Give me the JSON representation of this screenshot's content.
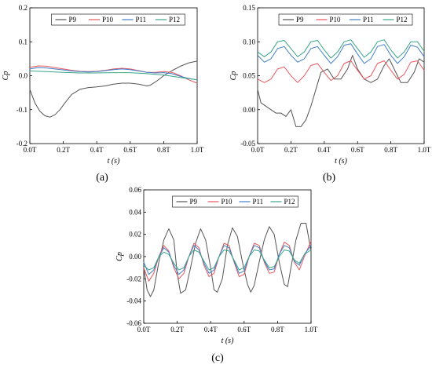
{
  "figure": {
    "panel_labels": [
      "(a)",
      "(b)",
      "(c)"
    ]
  },
  "colors": {
    "P9": "#555555",
    "P10": "#e8585e",
    "P11": "#3f7fc8",
    "P12": "#3aa58a"
  },
  "chart_data": [
    {
      "id": "a",
      "type": "line",
      "panel_label": "(a)",
      "xlabel": "t (s)",
      "ylabel": "Cp",
      "xlim": [
        0,
        1
      ],
      "ylim": [
        -0.2,
        0.2
      ],
      "xticks": [
        "0.0T",
        "0.2T",
        "0.4T",
        "0.6T",
        "0.8T",
        "1.0T"
      ],
      "yticks": [
        "-0.2",
        "-0.1",
        "0.0",
        "0.1",
        "0.2"
      ],
      "ytick_values": [
        -0.2,
        -0.1,
        0.0,
        0.1,
        0.2
      ],
      "legend": [
        "P9",
        "P10",
        "P11",
        "P12"
      ],
      "legend_placement": "top",
      "series": [
        {
          "name": "P9",
          "x": [
            0,
            0.03,
            0.06,
            0.09,
            0.12,
            0.15,
            0.18,
            0.21,
            0.25,
            0.3,
            0.35,
            0.4,
            0.45,
            0.5,
            0.55,
            0.6,
            0.65,
            0.7,
            0.72,
            0.76,
            0.8,
            0.85,
            0.9,
            0.95,
            1.0
          ],
          "y": [
            -0.04,
            -0.08,
            -0.105,
            -0.118,
            -0.122,
            -0.115,
            -0.1,
            -0.08,
            -0.055,
            -0.04,
            -0.035,
            -0.033,
            -0.03,
            -0.025,
            -0.022,
            -0.022,
            -0.025,
            -0.03,
            -0.028,
            -0.015,
            0.0,
            0.015,
            0.028,
            0.038,
            0.043
          ]
        },
        {
          "name": "P10",
          "x": [
            0,
            0.05,
            0.1,
            0.15,
            0.2,
            0.25,
            0.3,
            0.35,
            0.4,
            0.45,
            0.5,
            0.55,
            0.6,
            0.65,
            0.7,
            0.75,
            0.8,
            0.85,
            0.9,
            0.95,
            1.0
          ],
          "y": [
            0.025,
            0.029,
            0.028,
            0.024,
            0.02,
            0.016,
            0.013,
            0.012,
            0.013,
            0.016,
            0.02,
            0.022,
            0.02,
            0.015,
            0.01,
            0.01,
            0.012,
            0.01,
            0.0,
            -0.012,
            -0.022
          ]
        },
        {
          "name": "P11",
          "x": [
            0,
            0.05,
            0.1,
            0.15,
            0.2,
            0.25,
            0.3,
            0.35,
            0.4,
            0.45,
            0.5,
            0.55,
            0.6,
            0.65,
            0.7,
            0.75,
            0.8,
            0.85,
            0.9,
            0.95,
            1.0
          ],
          "y": [
            0.02,
            0.024,
            0.023,
            0.02,
            0.017,
            0.014,
            0.012,
            0.011,
            0.012,
            0.015,
            0.018,
            0.02,
            0.018,
            0.014,
            0.01,
            0.008,
            0.009,
            0.006,
            -0.002,
            -0.008,
            -0.012
          ]
        },
        {
          "name": "P12",
          "x": [
            0,
            0.1,
            0.2,
            0.3,
            0.4,
            0.5,
            0.6,
            0.7,
            0.8,
            0.9,
            1.0
          ],
          "y": [
            0.014,
            0.012,
            0.01,
            0.008,
            0.008,
            0.009,
            0.009,
            0.006,
            0.002,
            -0.005,
            -0.012
          ]
        }
      ]
    },
    {
      "id": "b",
      "type": "line",
      "panel_label": "(b)",
      "xlabel": "t (s)",
      "ylabel": "Cp",
      "xlim": [
        0,
        1
      ],
      "ylim": [
        -0.05,
        0.15
      ],
      "xticks": [
        "0.0T",
        "0.2T",
        "0.4T",
        "0.6T",
        "0.8T",
        "1.0T"
      ],
      "yticks": [
        "-0.05",
        "0.00",
        "0.05",
        "0.10",
        "0.15"
      ],
      "ytick_values": [
        -0.05,
        0.0,
        0.05,
        0.1,
        0.15
      ],
      "legend": [
        "P9",
        "P10",
        "P11",
        "P12"
      ],
      "legend_placement": "top",
      "series": [
        {
          "name": "P9",
          "x": [
            0,
            0.02,
            0.05,
            0.08,
            0.11,
            0.14,
            0.17,
            0.2,
            0.23,
            0.26,
            0.29,
            0.32,
            0.35,
            0.38,
            0.42,
            0.46,
            0.5,
            0.54,
            0.57,
            0.6,
            0.64,
            0.68,
            0.72,
            0.76,
            0.79,
            0.82,
            0.86,
            0.9,
            0.94,
            0.97,
            1.0
          ],
          "y": [
            0.03,
            0.01,
            0.005,
            0.0,
            -0.005,
            -0.005,
            -0.01,
            0.0,
            -0.025,
            -0.025,
            -0.015,
            0.005,
            0.03,
            0.055,
            0.06,
            0.045,
            0.045,
            0.06,
            0.08,
            0.06,
            0.045,
            0.04,
            0.045,
            0.065,
            0.075,
            0.06,
            0.04,
            0.04,
            0.055,
            0.075,
            0.07
          ]
        },
        {
          "name": "P10",
          "x": [
            0,
            0.04,
            0.08,
            0.12,
            0.16,
            0.2,
            0.24,
            0.28,
            0.32,
            0.36,
            0.4,
            0.44,
            0.48,
            0.52,
            0.56,
            0.6,
            0.64,
            0.68,
            0.72,
            0.76,
            0.8,
            0.84,
            0.88,
            0.92,
            0.96,
            1.0
          ],
          "y": [
            0.045,
            0.04,
            0.045,
            0.06,
            0.063,
            0.05,
            0.04,
            0.05,
            0.065,
            0.068,
            0.055,
            0.043,
            0.05,
            0.068,
            0.072,
            0.058,
            0.045,
            0.05,
            0.068,
            0.072,
            0.058,
            0.045,
            0.052,
            0.07,
            0.072,
            0.058
          ]
        },
        {
          "name": "P11",
          "x": [
            0,
            0.04,
            0.08,
            0.12,
            0.16,
            0.2,
            0.24,
            0.28,
            0.32,
            0.36,
            0.4,
            0.44,
            0.48,
            0.52,
            0.56,
            0.6,
            0.64,
            0.68,
            0.72,
            0.76,
            0.8,
            0.84,
            0.88,
            0.92,
            0.96,
            1.0
          ],
          "y": [
            0.08,
            0.07,
            0.075,
            0.09,
            0.093,
            0.08,
            0.07,
            0.075,
            0.09,
            0.093,
            0.08,
            0.068,
            0.078,
            0.095,
            0.097,
            0.082,
            0.068,
            0.075,
            0.093,
            0.096,
            0.08,
            0.068,
            0.078,
            0.095,
            0.092,
            0.078
          ]
        },
        {
          "name": "P12",
          "x": [
            0,
            0.04,
            0.08,
            0.12,
            0.16,
            0.2,
            0.24,
            0.28,
            0.32,
            0.36,
            0.4,
            0.44,
            0.48,
            0.52,
            0.56,
            0.6,
            0.64,
            0.68,
            0.72,
            0.76,
            0.8,
            0.84,
            0.88,
            0.92,
            0.96,
            1.0
          ],
          "y": [
            0.085,
            0.078,
            0.085,
            0.1,
            0.102,
            0.09,
            0.078,
            0.085,
            0.1,
            0.102,
            0.088,
            0.076,
            0.085,
            0.1,
            0.103,
            0.09,
            0.077,
            0.085,
            0.1,
            0.103,
            0.088,
            0.076,
            0.085,
            0.1,
            0.1,
            0.086
          ]
        }
      ]
    },
    {
      "id": "c",
      "type": "line",
      "panel_label": "(c)",
      "xlabel": "t (s)",
      "ylabel": "Cp",
      "xlim": [
        0,
        1
      ],
      "ylim": [
        -0.06,
        0.06
      ],
      "xticks": [
        "0.0T",
        "0.2T",
        "0.4T",
        "0.6T",
        "0.8T",
        "1.0T"
      ],
      "yticks": [
        "-0.06",
        "-0.04",
        "-0.02",
        "0.00",
        "0.02",
        "0.04",
        "0.06"
      ],
      "ytick_values": [
        -0.06,
        -0.04,
        -0.02,
        0.0,
        0.02,
        0.04,
        0.06
      ],
      "legend": [
        "P9",
        "P10",
        "P11",
        "P12"
      ],
      "legend_placement": "top",
      "series": [
        {
          "name": "P9",
          "x": [
            0,
            0.02,
            0.04,
            0.06,
            0.09,
            0.12,
            0.15,
            0.18,
            0.2,
            0.22,
            0.25,
            0.28,
            0.31,
            0.34,
            0.37,
            0.4,
            0.42,
            0.44,
            0.47,
            0.5,
            0.53,
            0.56,
            0.59,
            0.62,
            0.64,
            0.66,
            0.69,
            0.72,
            0.75,
            0.78,
            0.81,
            0.84,
            0.86,
            0.88,
            0.91,
            0.94,
            0.97,
            1.0
          ],
          "y": [
            -0.01,
            -0.03,
            -0.036,
            -0.03,
            -0.005,
            0.015,
            0.025,
            0.015,
            -0.015,
            -0.033,
            -0.03,
            -0.01,
            0.012,
            0.025,
            0.015,
            -0.01,
            -0.03,
            -0.032,
            -0.02,
            0.01,
            0.026,
            0.018,
            -0.005,
            -0.025,
            -0.032,
            -0.026,
            -0.005,
            0.015,
            0.027,
            0.02,
            -0.005,
            -0.025,
            -0.027,
            -0.01,
            0.015,
            0.03,
            0.03,
            0.005
          ]
        },
        {
          "name": "P10",
          "x": [
            0,
            0.03,
            0.06,
            0.09,
            0.12,
            0.15,
            0.18,
            0.21,
            0.24,
            0.27,
            0.3,
            0.33,
            0.36,
            0.39,
            0.42,
            0.45,
            0.48,
            0.51,
            0.54,
            0.57,
            0.6,
            0.63,
            0.66,
            0.69,
            0.72,
            0.75,
            0.78,
            0.81,
            0.84,
            0.87,
            0.9,
            0.93,
            0.96,
            1.0
          ],
          "y": [
            -0.01,
            -0.022,
            -0.015,
            0.0,
            0.01,
            0.005,
            -0.01,
            -0.02,
            -0.015,
            0.0,
            0.012,
            0.008,
            -0.008,
            -0.018,
            -0.015,
            0.0,
            0.012,
            0.01,
            -0.005,
            -0.018,
            -0.016,
            0.0,
            0.012,
            0.01,
            -0.005,
            -0.015,
            -0.014,
            0.002,
            0.013,
            0.01,
            -0.005,
            -0.012,
            0.0,
            0.014
          ]
        },
        {
          "name": "P11",
          "x": [
            0,
            0.03,
            0.06,
            0.09,
            0.12,
            0.15,
            0.18,
            0.21,
            0.24,
            0.27,
            0.3,
            0.33,
            0.36,
            0.39,
            0.42,
            0.45,
            0.48,
            0.51,
            0.54,
            0.57,
            0.6,
            0.63,
            0.66,
            0.69,
            0.72,
            0.75,
            0.78,
            0.81,
            0.84,
            0.87,
            0.9,
            0.93,
            0.96,
            1.0
          ],
          "y": [
            -0.005,
            -0.016,
            -0.012,
            0.0,
            0.008,
            0.004,
            -0.008,
            -0.016,
            -0.012,
            0.0,
            0.01,
            0.006,
            -0.006,
            -0.015,
            -0.012,
            0.0,
            0.01,
            0.008,
            -0.004,
            -0.015,
            -0.013,
            0.0,
            0.01,
            0.008,
            -0.004,
            -0.012,
            -0.011,
            0.002,
            0.01,
            0.008,
            -0.004,
            -0.008,
            0.002,
            0.01
          ]
        },
        {
          "name": "P12",
          "x": [
            0,
            0.03,
            0.06,
            0.09,
            0.12,
            0.15,
            0.18,
            0.21,
            0.24,
            0.27,
            0.3,
            0.33,
            0.36,
            0.39,
            0.42,
            0.45,
            0.48,
            0.51,
            0.54,
            0.57,
            0.6,
            0.63,
            0.66,
            0.69,
            0.72,
            0.75,
            0.78,
            0.81,
            0.84,
            0.87,
            0.9,
            0.93,
            0.96,
            1.0
          ],
          "y": [
            -0.008,
            -0.012,
            -0.01,
            0.0,
            0.004,
            0.002,
            -0.006,
            -0.012,
            -0.01,
            0.0,
            0.006,
            0.004,
            -0.004,
            -0.012,
            -0.01,
            0.0,
            0.006,
            0.005,
            -0.003,
            -0.012,
            -0.01,
            0.0,
            0.006,
            0.005,
            -0.003,
            -0.01,
            -0.009,
            0.0,
            0.006,
            0.005,
            -0.003,
            -0.006,
            0.002,
            0.006
          ]
        }
      ]
    }
  ]
}
